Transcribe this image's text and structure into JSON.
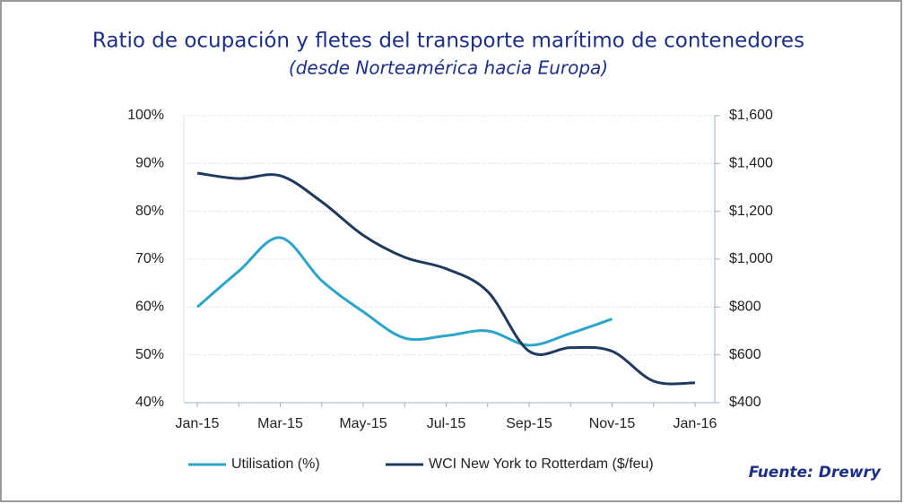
{
  "chart_data": {
    "type": "line",
    "title": "Ratio de ocupación y fletes del transporte marítimo de contenedores",
    "subtitle": "(desde Norteamérica hacia Europa)",
    "source": "Fuente: Drewry",
    "categories": [
      "Jan-15",
      null,
      "Mar-15",
      null,
      "May-15",
      null,
      "Jul-15",
      null,
      "Sep-15",
      null,
      "Nov-15",
      null,
      "Jan-16"
    ],
    "series": [
      {
        "name": "Utilisation (%)",
        "color": "#2ba5c9",
        "values": [
          60,
          67.5,
          74.5,
          65.5,
          59,
          53.5,
          54,
          55,
          52,
          54.5,
          57.5,
          null,
          null
        ]
      },
      {
        "name": "WCI New York to Rotterdam ($/feu)",
        "color": "#1f3a5c",
        "axis": "y2",
        "values": [
          1360,
          1337,
          1349,
          1240,
          1100,
          1008,
          960,
          865,
          615,
          630,
          615,
          490,
          483
        ]
      }
    ],
    "ylim": [
      40,
      100
    ],
    "yticks": [
      {
        "value": 40,
        "label": "40%"
      },
      {
        "value": 50,
        "label": "50%"
      },
      {
        "value": 60,
        "label": "60%"
      },
      {
        "value": 70,
        "label": "70%"
      },
      {
        "value": 80,
        "label": "80%"
      },
      {
        "value": 90,
        "label": "90%"
      },
      {
        "value": 100,
        "label": "100%"
      }
    ],
    "y2lim": [
      400,
      1600
    ],
    "y2ticks": [
      {
        "value": 400,
        "label": "$400"
      },
      {
        "value": 600,
        "label": "$600"
      },
      {
        "value": 800,
        "label": "$800"
      },
      {
        "value": 1000,
        "label": "$1,000"
      },
      {
        "value": 1200,
        "label": "$1,200"
      },
      {
        "value": 1400,
        "label": "$1,400"
      },
      {
        "value": 1600,
        "label": "$1,600"
      }
    ],
    "grid": true,
    "legend": "bottom"
  }
}
